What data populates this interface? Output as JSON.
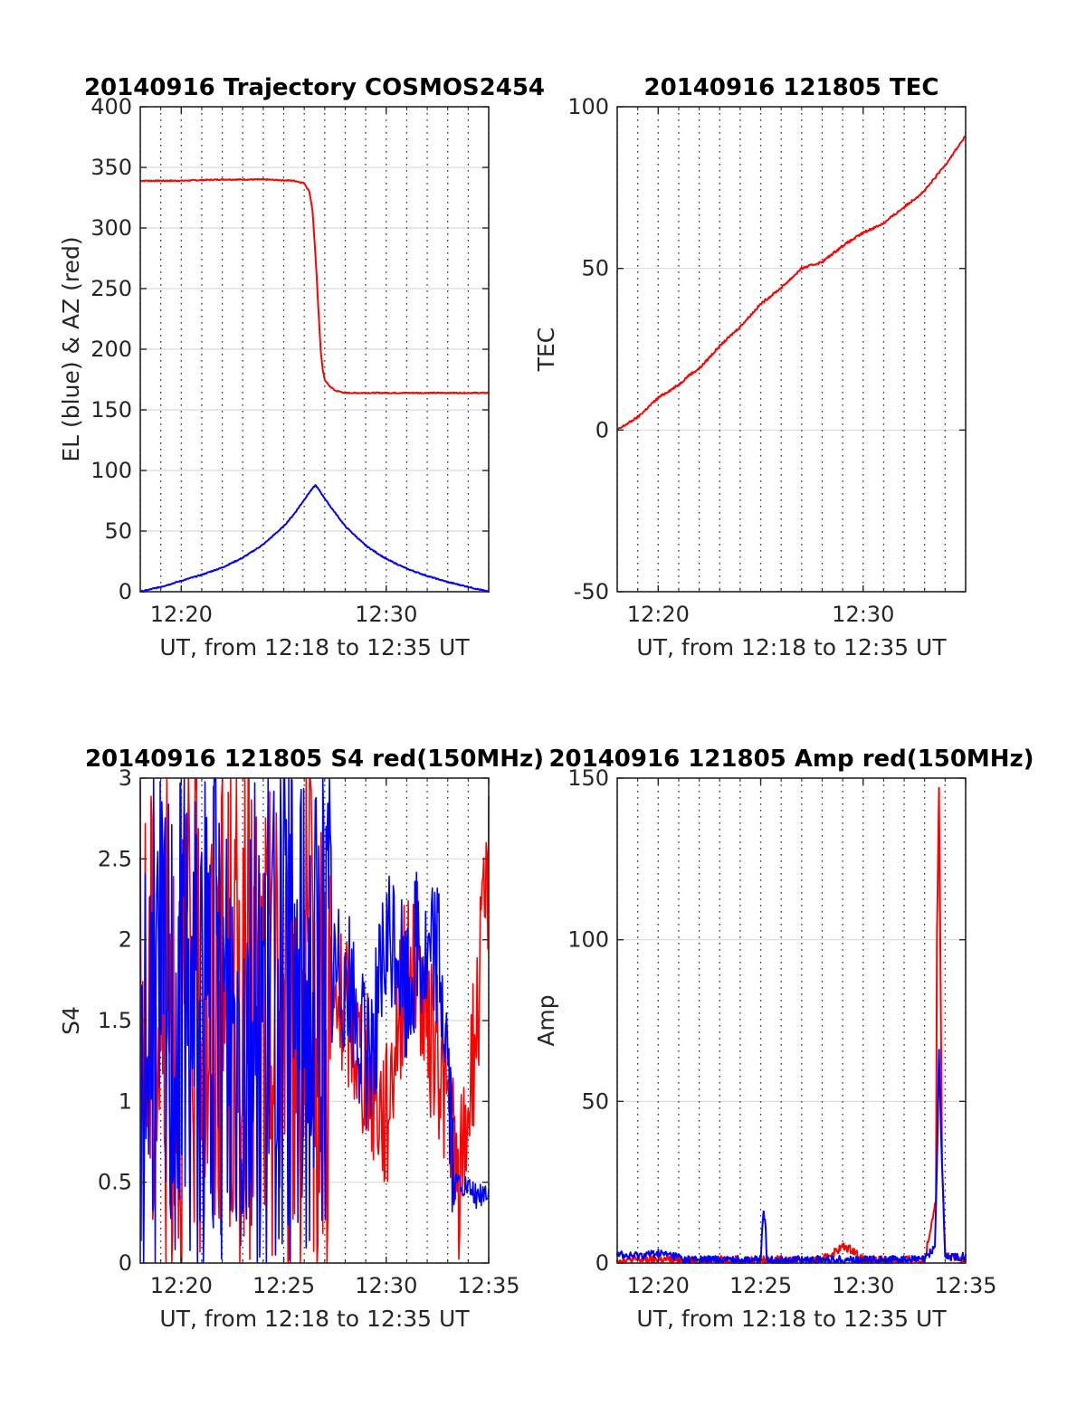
{
  "figure": {
    "colors": {
      "el": "#0000ff",
      "az": "#ff0000",
      "s4_red": "#ff0000",
      "s4_blue": "#0000ff",
      "grid": "#d9d9d9",
      "axis": "#262626"
    }
  },
  "chart_data": [
    {
      "type": "line",
      "title": "20140916 Trajectory COSMOS2454",
      "xlabel": "UT, from 12:18 to 12:35 UT",
      "ylabel": "EL (blue) & AZ (red)",
      "xlim": [
        "12:18",
        "12:35"
      ],
      "ylim": [
        0,
        400
      ],
      "xticks": [
        "12:20",
        "12:30"
      ],
      "yticks": [
        "0",
        "50",
        "100",
        "150",
        "200",
        "250",
        "300",
        "350",
        "400"
      ],
      "x_minor_grid": "every 1 min, dotted",
      "series": [
        {
          "name": "AZ (red)",
          "color": "#ff0000",
          "x": [
            "12:18",
            "12:20",
            "12:22",
            "12:24",
            "12:25.5",
            "12:26",
            "12:26.25",
            "12:26.4",
            "12:26.5",
            "12:26.6",
            "12:26.7",
            "12:26.8",
            "12:26.9",
            "12:27",
            "12:27.2",
            "12:27.5",
            "12:28",
            "12:30",
            "12:35"
          ],
          "values": [
            339,
            339,
            340,
            340,
            339,
            337,
            330,
            315,
            290,
            262,
            230,
            200,
            183,
            175,
            170,
            166,
            164,
            164,
            164
          ]
        },
        {
          "name": "EL (blue)",
          "color": "#0000ff",
          "x": [
            "12:18",
            "12:19",
            "12:20",
            "12:21",
            "12:22",
            "12:23",
            "12:24",
            "12:25",
            "12:25.5",
            "12:26",
            "12:26.3",
            "12:26.55",
            "12:26.8",
            "12:27.2",
            "12:28",
            "12:29",
            "12:30",
            "12:31",
            "12:32",
            "12:33",
            "12:34",
            "12:35"
          ],
          "values": [
            0,
            4,
            9,
            14,
            20,
            28,
            39,
            54,
            64,
            76,
            83,
            88,
            82,
            72,
            54,
            38,
            27,
            19,
            13,
            8,
            4,
            0
          ]
        }
      ]
    },
    {
      "type": "line",
      "title": "20140916 121805 TEC",
      "xlabel": "UT, from 12:18 to 12:35 UT",
      "ylabel": "TEC",
      "xlim": [
        "12:18",
        "12:35"
      ],
      "ylim": [
        -50,
        100
      ],
      "xticks": [
        "12:20",
        "12:30"
      ],
      "yticks": [
        "-50",
        "0",
        "50",
        "100"
      ],
      "x_minor_grid": "every 1 min, dotted",
      "series": [
        {
          "name": "TEC",
          "color": "#ff0000",
          "x": [
            "12:18",
            "12:19",
            "12:20",
            "12:20.5",
            "12:21",
            "12:21.5",
            "12:22",
            "12:23",
            "12:24",
            "12:25",
            "12:26",
            "12:27",
            "12:28",
            "12:29",
            "12:30",
            "12:31",
            "12:32",
            "12:33",
            "12:34",
            "12:35"
          ],
          "values": [
            0,
            4,
            10,
            12,
            14,
            17,
            19,
            26,
            32,
            39,
            44,
            50,
            52,
            57,
            61,
            64,
            69,
            74,
            82,
            91
          ]
        }
      ]
    },
    {
      "type": "line",
      "title": "20140916 121805 S4 red(150MHz)",
      "xlabel": "UT, from 12:18 to 12:35 UT",
      "ylabel": "S4",
      "xlim": [
        "12:18",
        "12:35"
      ],
      "ylim": [
        0,
        3
      ],
      "xticks": [
        "12:20",
        "12:25",
        "12:30",
        "12:35"
      ],
      "yticks": [
        "0",
        "0.5",
        "1",
        "1.5",
        "2",
        "2.5",
        "3"
      ],
      "x_minor_grid": "every 1 min, dotted",
      "series": [
        {
          "name": "S4 red",
          "color": "#ff0000",
          "x": [
            "12:18",
            "12:20",
            "12:22",
            "12:24",
            "12:26",
            "12:27",
            "12:28",
            "12:29",
            "12:30",
            "12:30.5",
            "12:31",
            "12:31.5",
            "12:32",
            "12:32.5",
            "12:33",
            "12:33.5",
            "12:34",
            "12:34.5",
            "12:35"
          ],
          "values": [
            1.5,
            1.5,
            1.6,
            1.5,
            1.5,
            1.4,
            1.6,
            1.2,
            0.9,
            1.5,
            1.8,
            1.9,
            1.4,
            1.3,
            1.0,
            0.4,
            1.0,
            1.6,
            2.5
          ]
        },
        {
          "name": "S4 blue",
          "color": "#0000ff",
          "x": [
            "12:18",
            "12:20",
            "12:22",
            "12:24",
            "12:26",
            "12:27",
            "12:28",
            "12:29",
            "12:30",
            "12:30.5",
            "12:31",
            "12:31.5",
            "12:32",
            "12:32.5",
            "12:33",
            "12:33.3",
            "12:33.5",
            "12:34",
            "12:34.5",
            "12:35"
          ],
          "values": [
            1.5,
            1.6,
            1.5,
            1.5,
            1.6,
            1.7,
            1.8,
            1.2,
            1.9,
            2.0,
            1.6,
            2.0,
            1.8,
            2.0,
            1.3,
            0.45,
            0.5,
            0.45,
            0.4,
            0.45
          ]
        }
      ]
    },
    {
      "type": "line",
      "title": "20140916 121805 Amp red(150MHz)",
      "xlabel": "UT, from 12:18 to 12:35 UT",
      "ylabel": "Amp",
      "xlim": [
        "12:18",
        "12:35"
      ],
      "ylim": [
        0,
        150
      ],
      "xticks": [
        "12:20",
        "12:25",
        "12:30",
        "12:35"
      ],
      "yticks": [
        "0",
        "50",
        "100",
        "150"
      ],
      "x_minor_grid": "every 1 min, dotted",
      "series": [
        {
          "name": "Amp red",
          "color": "#ff0000",
          "x": [
            "12:18",
            "12:25",
            "12:28",
            "12:28.5",
            "12:29",
            "12:29.5",
            "12:30",
            "12:33",
            "12:33.55",
            "12:33.6",
            "12:33.7",
            "12:33.75",
            "12:33.85",
            "12:34",
            "12:35"
          ],
          "values": [
            1,
            1,
            1,
            3,
            5,
            4,
            1,
            1,
            20,
            100,
            147,
            110,
            30,
            2,
            1
          ]
        },
        {
          "name": "Amp blue",
          "color": "#0000ff",
          "x": [
            "12:18",
            "12:18.5",
            "12:20",
            "12:21",
            "12:21.2",
            "12:24",
            "12:25",
            "12:25.05",
            "12:25.15",
            "12:25.25",
            "12:25.3",
            "12:28",
            "12:33",
            "12:33.5",
            "12:33.6",
            "12:33.7",
            "12:33.8",
            "12:34",
            "12:35"
          ],
          "values": [
            3,
            2,
            3,
            2,
            1,
            1,
            1,
            8,
            16,
            10,
            1,
            1,
            1,
            5,
            30,
            66,
            40,
            2,
            2
          ]
        }
      ]
    }
  ]
}
